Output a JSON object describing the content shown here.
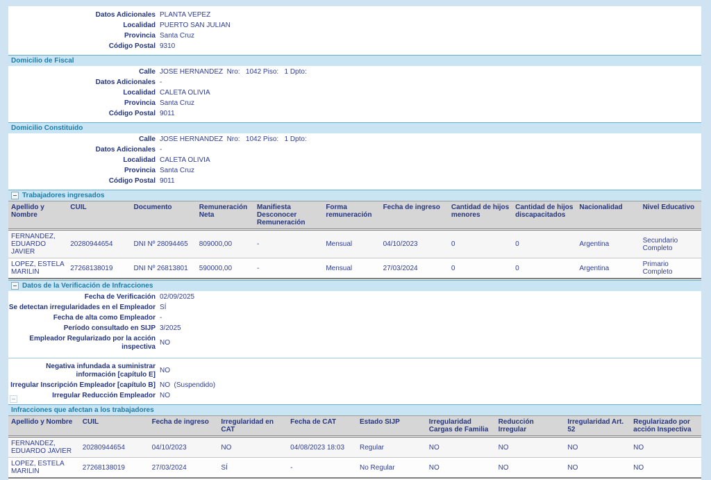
{
  "colors": {
    "page_background": "#cfe3f2",
    "section_bar_background": "#c9e5f4",
    "section_title_text": "#1c7daa",
    "label_text": "#24357e",
    "value_text": "#2e3d96",
    "table_header_background": "#d6d6d6"
  },
  "establecimiento": {
    "rows": [
      {
        "label": "Datos Adicionales",
        "value": "PLANTA VEPEZ"
      },
      {
        "label": "Localidad",
        "value": "PUERTO SAN JULIAN"
      },
      {
        "label": "Provincia",
        "value": "Santa Cruz"
      },
      {
        "label": "Código Postal",
        "value": "9310"
      }
    ]
  },
  "domicilio_fiscal": {
    "title": "Domicilio de Fiscal",
    "rows": [
      {
        "label": "Calle",
        "value": "JOSE HERNANDEZ  Nro:   1042 Piso:   1 Dpto:"
      },
      {
        "label": "Datos Adicionales",
        "value": "-"
      },
      {
        "label": "Localidad",
        "value": "CALETA OLIVIA"
      },
      {
        "label": "Provincia",
        "value": "Santa Cruz"
      },
      {
        "label": "Código Postal",
        "value": "9011"
      }
    ]
  },
  "domicilio_constituido": {
    "title": "Domicilio Constituido",
    "rows": [
      {
        "label": "Calle",
        "value": "JOSE HERNANDEZ  Nro:   1042 Piso:   1 Dpto:"
      },
      {
        "label": "Datos Adicionales",
        "value": "-"
      },
      {
        "label": "Localidad",
        "value": "CALETA OLIVIA"
      },
      {
        "label": "Provincia",
        "value": "Santa Cruz"
      },
      {
        "label": "Código Postal",
        "value": "9011"
      }
    ]
  },
  "trabajadores": {
    "title": "Trabajadores ingresados",
    "table": {
      "columns": [
        "Apellido y Nombre",
        "CUIL",
        "Documento",
        "Remuneración Neta",
        "Manifiesta Desconocer Remuneración",
        "Forma remuneración",
        "Fecha de ingreso",
        "Cantidad de hijos menores",
        "Cantidad de hijos discapacitados",
        "Nacionalidad",
        "Nivel Educativo"
      ],
      "rows": [
        [
          "FERNANDEZ, EDUARDO JAVIER",
          "20280944654",
          "DNI Nº 28094465",
          "809000,00",
          "-",
          "Mensual",
          "04/10/2023",
          "0",
          "0",
          "Argentina",
          "Secundario Completo"
        ],
        [
          "LOPEZ, ESTELA MARILIN",
          "27268138019",
          "DNI Nº 26813801",
          "590000,00",
          "-",
          "Mensual",
          "27/03/2024",
          "0",
          "0",
          "Argentina",
          "Primario Completo"
        ]
      ]
    }
  },
  "verificacion": {
    "title": "Datos de la Verificación de Infracciones",
    "rows_a": [
      {
        "label": "Fecha de Verificación",
        "value": "02/09/2025"
      },
      {
        "label": "Se detectan irregularidades en el Empleador",
        "value": "SÍ"
      },
      {
        "label": "Fecha de alta como Empleador",
        "value": "-"
      },
      {
        "label": "Período consultado en SIJP",
        "value": "3/2025"
      },
      {
        "label": "Empleador Regularizado por la acción inspectiva",
        "value": "NO"
      }
    ],
    "rows_b": [
      {
        "label": "Negativa infundada a suministrar información [capítulo E]",
        "value": "NO"
      },
      {
        "label": "Irregular Inscripción Empleador [capítulo B]",
        "value": "NO  (Suspendido)"
      },
      {
        "label": "Irregular Reducción Empleador",
        "value": "NO"
      }
    ]
  },
  "infracciones": {
    "title": "Infracciones que afectan a los trabajadores",
    "table": {
      "columns": [
        "Apellido y Nombre",
        "CUIL",
        "Fecha de ingreso",
        "Irregularidad en CAT",
        "Fecha de CAT",
        "Estado SIJP",
        "Irregularidad Cargas de Familia",
        "Reducción Irregular",
        "Irregularidad Art. 52",
        "Regularizado por acción Inspectiva"
      ],
      "rows": [
        [
          "FERNANDEZ, EDUARDO JAVIER",
          "20280944654",
          "04/10/2023",
          "NO",
          "04/08/2023 18:03",
          "Regular",
          "NO",
          "NO",
          "NO",
          "NO"
        ],
        [
          "LOPEZ, ESTELA MARILIN",
          "27268138019",
          "27/03/2024",
          "SÍ",
          "-",
          "No Regular",
          "NO",
          "NO",
          "NO",
          "NO"
        ]
      ]
    }
  }
}
